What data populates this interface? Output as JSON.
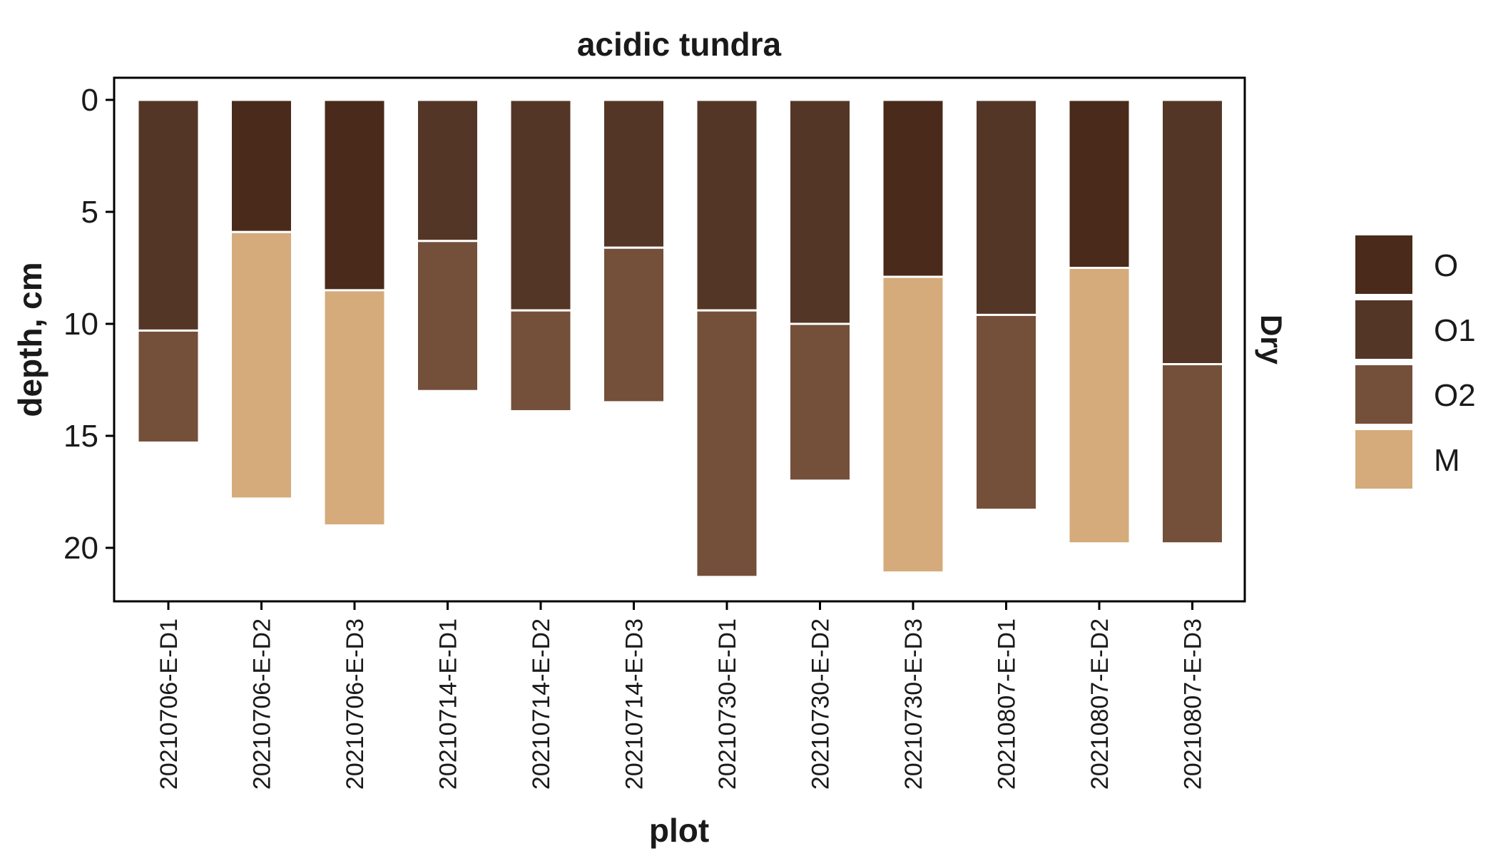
{
  "chart_data": {
    "type": "bar",
    "stacked": true,
    "title": "acidic tundra",
    "facet_label": "Dry",
    "xlabel": "plot",
    "ylabel": "depth, cm",
    "ylim": [
      0,
      22.5
    ],
    "y_reversed": true,
    "yticks": [
      "0",
      "5",
      "10",
      "15",
      "20"
    ],
    "grid": false,
    "legend_position": "right",
    "categories": [
      "20210706-E-D1",
      "20210706-E-D2",
      "20210706-E-D3",
      "20210714-E-D1",
      "20210714-E-D2",
      "20210714-E-D3",
      "20210730-E-D1",
      "20210730-E-D2",
      "20210730-E-D3",
      "20210807-E-D1",
      "20210807-E-D2",
      "20210807-E-D3"
    ],
    "series": [
      {
        "name": "O",
        "color": "#4a2a1a",
        "values": [
          0,
          5.9,
          8.5,
          0,
          0,
          0,
          0,
          0,
          7.9,
          0,
          7.5,
          0
        ]
      },
      {
        "name": "O1",
        "color": "#543627",
        "values": [
          10.3,
          0,
          0,
          6.3,
          9.4,
          6.6,
          9.4,
          10.0,
          0,
          9.6,
          0,
          11.8
        ]
      },
      {
        "name": "O2",
        "color": "#744f39",
        "values": [
          5.0,
          0,
          0,
          6.7,
          4.5,
          6.9,
          11.9,
          7.0,
          0,
          8.7,
          0,
          8.0
        ]
      },
      {
        "name": "M",
        "color": "#d5ab7b",
        "values": [
          0,
          11.9,
          10.5,
          0,
          0,
          0,
          0,
          0,
          13.2,
          0,
          12.3,
          0
        ]
      }
    ]
  }
}
